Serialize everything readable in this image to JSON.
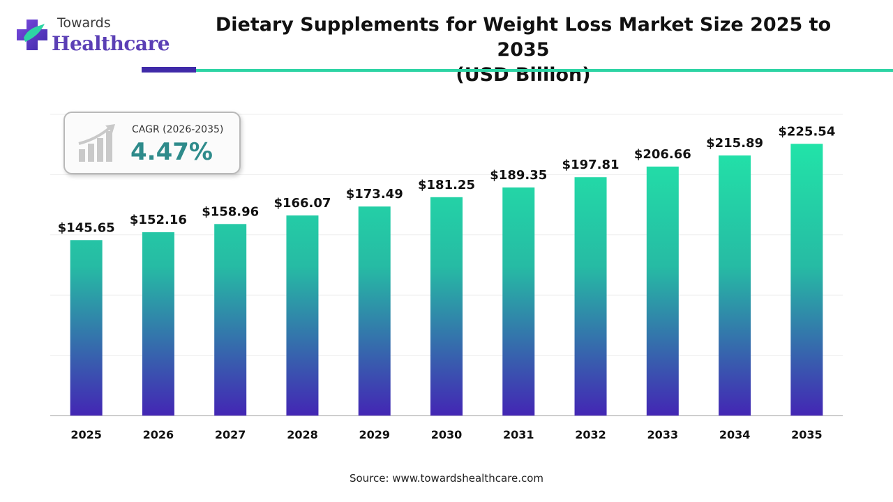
{
  "brand": {
    "line1": "Towards",
    "line2": "Healthcare"
  },
  "title_line1": "Dietary Supplements for Weight Loss Market Size 2025 to 2035",
  "title_line2": "(USD Billion)",
  "cagr": {
    "label": "CAGR (2026-2035)",
    "value": "4.47%"
  },
  "source": "Source: www.towardshealthcare.com",
  "colors": {
    "bar_top": "#22e3a8",
    "bar_bottom": "#4326b4",
    "accent_dark": "#3f2aa8",
    "accent_teal": "#2dd4a4",
    "cagr": "#2e8b8b"
  },
  "chart_data": {
    "type": "bar",
    "title": "Dietary Supplements for Weight Loss Market Size 2025 to 2035 (USD Billion)",
    "xlabel": "",
    "ylabel": "",
    "categories": [
      "2025",
      "2026",
      "2027",
      "2028",
      "2029",
      "2030",
      "2031",
      "2032",
      "2033",
      "2034",
      "2035"
    ],
    "values": [
      145.65,
      152.16,
      158.96,
      166.07,
      173.49,
      181.25,
      189.35,
      197.81,
      206.66,
      215.89,
      225.54
    ],
    "data_labels": [
      "$145.65",
      "$152.16",
      "$158.96",
      "$166.07",
      "$173.49",
      "$181.25",
      "$189.35",
      "$197.81",
      "$206.66",
      "$215.89",
      "$225.54"
    ],
    "ylim": [
      0,
      250
    ],
    "grid": true,
    "legend": "none"
  }
}
